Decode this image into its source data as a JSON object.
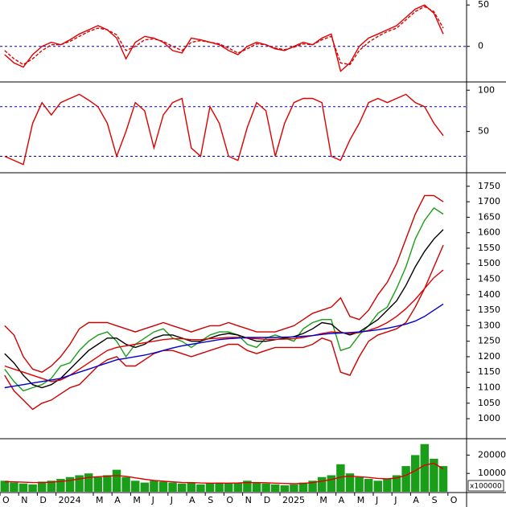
{
  "chart_data": [
    {
      "type": "line",
      "ylim": [
        -42,
        56
      ],
      "yticks": [
        0,
        50
      ],
      "hlines": [
        0
      ],
      "series": [
        {
          "name": "MACD",
          "color": "#dd0000",
          "values": [
            -10,
            -20,
            -25,
            -10,
            0,
            5,
            2,
            8,
            15,
            20,
            25,
            20,
            10,
            -15,
            5,
            12,
            10,
            5,
            -5,
            -8,
            10,
            8,
            5,
            2,
            -5,
            -10,
            0,
            5,
            2,
            -3,
            -5,
            0,
            5,
            2,
            10,
            15,
            -30,
            -20,
            0,
            10,
            15,
            20,
            25,
            35,
            45,
            50,
            40,
            15,
            null,
            null
          ]
        },
        {
          "name": "Signal",
          "color": "#dd0000",
          "dashed": true,
          "values": [
            -5,
            -15,
            -22,
            -15,
            -5,
            2,
            2,
            6,
            12,
            18,
            22,
            20,
            14,
            -5,
            0,
            8,
            9,
            6,
            0,
            -5,
            5,
            7,
            5,
            3,
            -2,
            -8,
            -3,
            3,
            2,
            -2,
            -4,
            -1,
            3,
            2,
            8,
            12,
            -20,
            -22,
            -5,
            5,
            12,
            18,
            22,
            32,
            42,
            48,
            42,
            22,
            null,
            null
          ]
        }
      ]
    },
    {
      "type": "line",
      "ylim": [
        1,
        109
      ],
      "yticks": [
        50,
        100
      ],
      "hlines": [
        20,
        80
      ],
      "series": [
        {
          "name": "Stochastic",
          "color": "#dd0000",
          "values": [
            20,
            15,
            10,
            60,
            85,
            70,
            85,
            90,
            95,
            88,
            80,
            60,
            20,
            50,
            85,
            75,
            30,
            70,
            85,
            90,
            30,
            20,
            80,
            60,
            20,
            15,
            55,
            85,
            75,
            20,
            60,
            85,
            90,
            90,
            85,
            20,
            15,
            40,
            60,
            85,
            90,
            85,
            90,
            95,
            85,
            80,
            60,
            45,
            null,
            null
          ]
        }
      ]
    },
    {
      "type": "line",
      "ylim": [
        938,
        1791
      ],
      "yticks": [
        1000,
        1050,
        1100,
        1150,
        1200,
        1250,
        1300,
        1350,
        1400,
        1450,
        1500,
        1550,
        1600,
        1650,
        1700,
        1750
      ],
      "series": [
        {
          "name": "Upper band",
          "color": "#cc0000",
          "values": [
            1300,
            1270,
            1200,
            1160,
            1150,
            1170,
            1200,
            1240,
            1290,
            1310,
            1310,
            1310,
            1300,
            1290,
            1280,
            1290,
            1300,
            1310,
            1300,
            1290,
            1280,
            1290,
            1300,
            1300,
            1310,
            1300,
            1290,
            1280,
            1280,
            1280,
            1290,
            1300,
            1320,
            1340,
            1350,
            1360,
            1390,
            1330,
            1320,
            1350,
            1400,
            1440,
            1500,
            1580,
            1660,
            1720,
            1720,
            1700,
            null,
            null
          ]
        },
        {
          "name": "Lower band",
          "color": "#cc0000",
          "values": [
            1140,
            1090,
            1060,
            1030,
            1050,
            1060,
            1080,
            1100,
            1110,
            1140,
            1170,
            1190,
            1200,
            1170,
            1170,
            1190,
            1210,
            1220,
            1220,
            1210,
            1200,
            1210,
            1220,
            1230,
            1240,
            1240,
            1220,
            1210,
            1220,
            1230,
            1230,
            1230,
            1230,
            1240,
            1260,
            1250,
            1150,
            1140,
            1200,
            1250,
            1270,
            1280,
            1290,
            1310,
            1360,
            1420,
            1490,
            1560,
            null,
            null
          ]
        },
        {
          "name": "Close",
          "color": "#1a9e1a",
          "values": [
            1160,
            1120,
            1090,
            1100,
            1110,
            1130,
            1170,
            1180,
            1220,
            1250,
            1270,
            1280,
            1250,
            1200,
            1240,
            1260,
            1280,
            1290,
            1260,
            1250,
            1230,
            1250,
            1270,
            1280,
            1280,
            1270,
            1240,
            1230,
            1260,
            1270,
            1260,
            1250,
            1290,
            1310,
            1320,
            1320,
            1220,
            1230,
            1270,
            1300,
            1340,
            1360,
            1420,
            1490,
            1580,
            1640,
            1680,
            1660,
            null,
            null
          ]
        },
        {
          "name": "MA20",
          "color": "#000000",
          "values": [
            1210,
            1180,
            1140,
            1110,
            1100,
            1110,
            1130,
            1160,
            1190,
            1220,
            1240,
            1260,
            1260,
            1240,
            1230,
            1240,
            1260,
            1270,
            1270,
            1260,
            1250,
            1250,
            1260,
            1270,
            1275,
            1270,
            1260,
            1250,
            1250,
            1255,
            1260,
            1265,
            1275,
            1290,
            1310,
            1305,
            1280,
            1270,
            1280,
            1300,
            1320,
            1350,
            1380,
            1430,
            1490,
            1540,
            1580,
            1610,
            null,
            null
          ]
        },
        {
          "name": "MA50",
          "color": "#e00000",
          "values": [
            1170,
            1160,
            1150,
            1140,
            1130,
            1120,
            1125,
            1140,
            1160,
            1180,
            1200,
            1220,
            1230,
            1235,
            1240,
            1245,
            1250,
            1255,
            1258,
            1258,
            1255,
            1255,
            1258,
            1260,
            1262,
            1262,
            1260,
            1258,
            1256,
            1256,
            1257,
            1258,
            1262,
            1268,
            1275,
            1280,
            1278,
            1275,
            1278,
            1285,
            1295,
            1310,
            1330,
            1355,
            1385,
            1420,
            1455,
            1480,
            null,
            null
          ]
        },
        {
          "name": "MA200",
          "color": "#0000cc",
          "values": [
            1100,
            1105,
            1110,
            1115,
            1120,
            1125,
            1130,
            1140,
            1150,
            1160,
            1170,
            1180,
            1190,
            1195,
            1200,
            1205,
            1212,
            1220,
            1228,
            1235,
            1240,
            1245,
            1250,
            1255,
            1258,
            1260,
            1262,
            1262,
            1262,
            1262,
            1263,
            1264,
            1266,
            1268,
            1272,
            1275,
            1276,
            1278,
            1280,
            1283,
            1287,
            1292,
            1298,
            1305,
            1315,
            1330,
            1350,
            1370,
            null,
            null
          ]
        }
      ]
    },
    {
      "type": "bar",
      "ylim": [
        0,
        28500
      ],
      "yticks": [
        10000,
        20000
      ],
      "unit_label": "x100000",
      "categories": [
        "O",
        null,
        "N",
        null,
        "D",
        null,
        "2024",
        null,
        null,
        null,
        "M",
        null,
        "A",
        null,
        "M",
        null,
        "J",
        null,
        "J",
        null,
        "A",
        null,
        "S",
        null,
        "O",
        null,
        "N",
        null,
        "D",
        null,
        "2025",
        null,
        null,
        null,
        "M",
        null,
        "A",
        null,
        "M",
        null,
        "J",
        null,
        "J",
        null,
        "A",
        null,
        "S",
        null,
        "O",
        null
      ],
      "series": [
        {
          "name": "Volume",
          "color": "#1a9e1a",
          "values": [
            6000,
            5000,
            4500,
            4000,
            5500,
            6000,
            7000,
            8000,
            9000,
            10000,
            8000,
            9000,
            12000,
            8000,
            6000,
            5000,
            6000,
            5500,
            5000,
            4500,
            5000,
            4000,
            4500,
            5000,
            4500,
            5000,
            6000,
            5000,
            4500,
            4000,
            3500,
            4000,
            5000,
            6000,
            8000,
            9000,
            15000,
            10000,
            8000,
            7000,
            6000,
            7000,
            9000,
            14000,
            20000,
            26000,
            18000,
            14000,
            null,
            null
          ]
        },
        {
          "name": "Volume MA",
          "color": "#dd0000",
          "line": true,
          "values": [
            5500,
            5400,
            5200,
            5000,
            5000,
            5200,
            5600,
            6200,
            7000,
            7800,
            8200,
            8500,
            8800,
            8400,
            7600,
            6800,
            6200,
            5800,
            5400,
            5100,
            5000,
            4800,
            4700,
            4700,
            4700,
            4800,
            5000,
            5000,
            4900,
            4700,
            4500,
            4400,
            4500,
            5000,
            5800,
            6600,
            8000,
            8500,
            8200,
            7800,
            7300,
            7000,
            7500,
            9000,
            11500,
            14500,
            15500,
            12500,
            null,
            null
          ]
        }
      ]
    }
  ]
}
